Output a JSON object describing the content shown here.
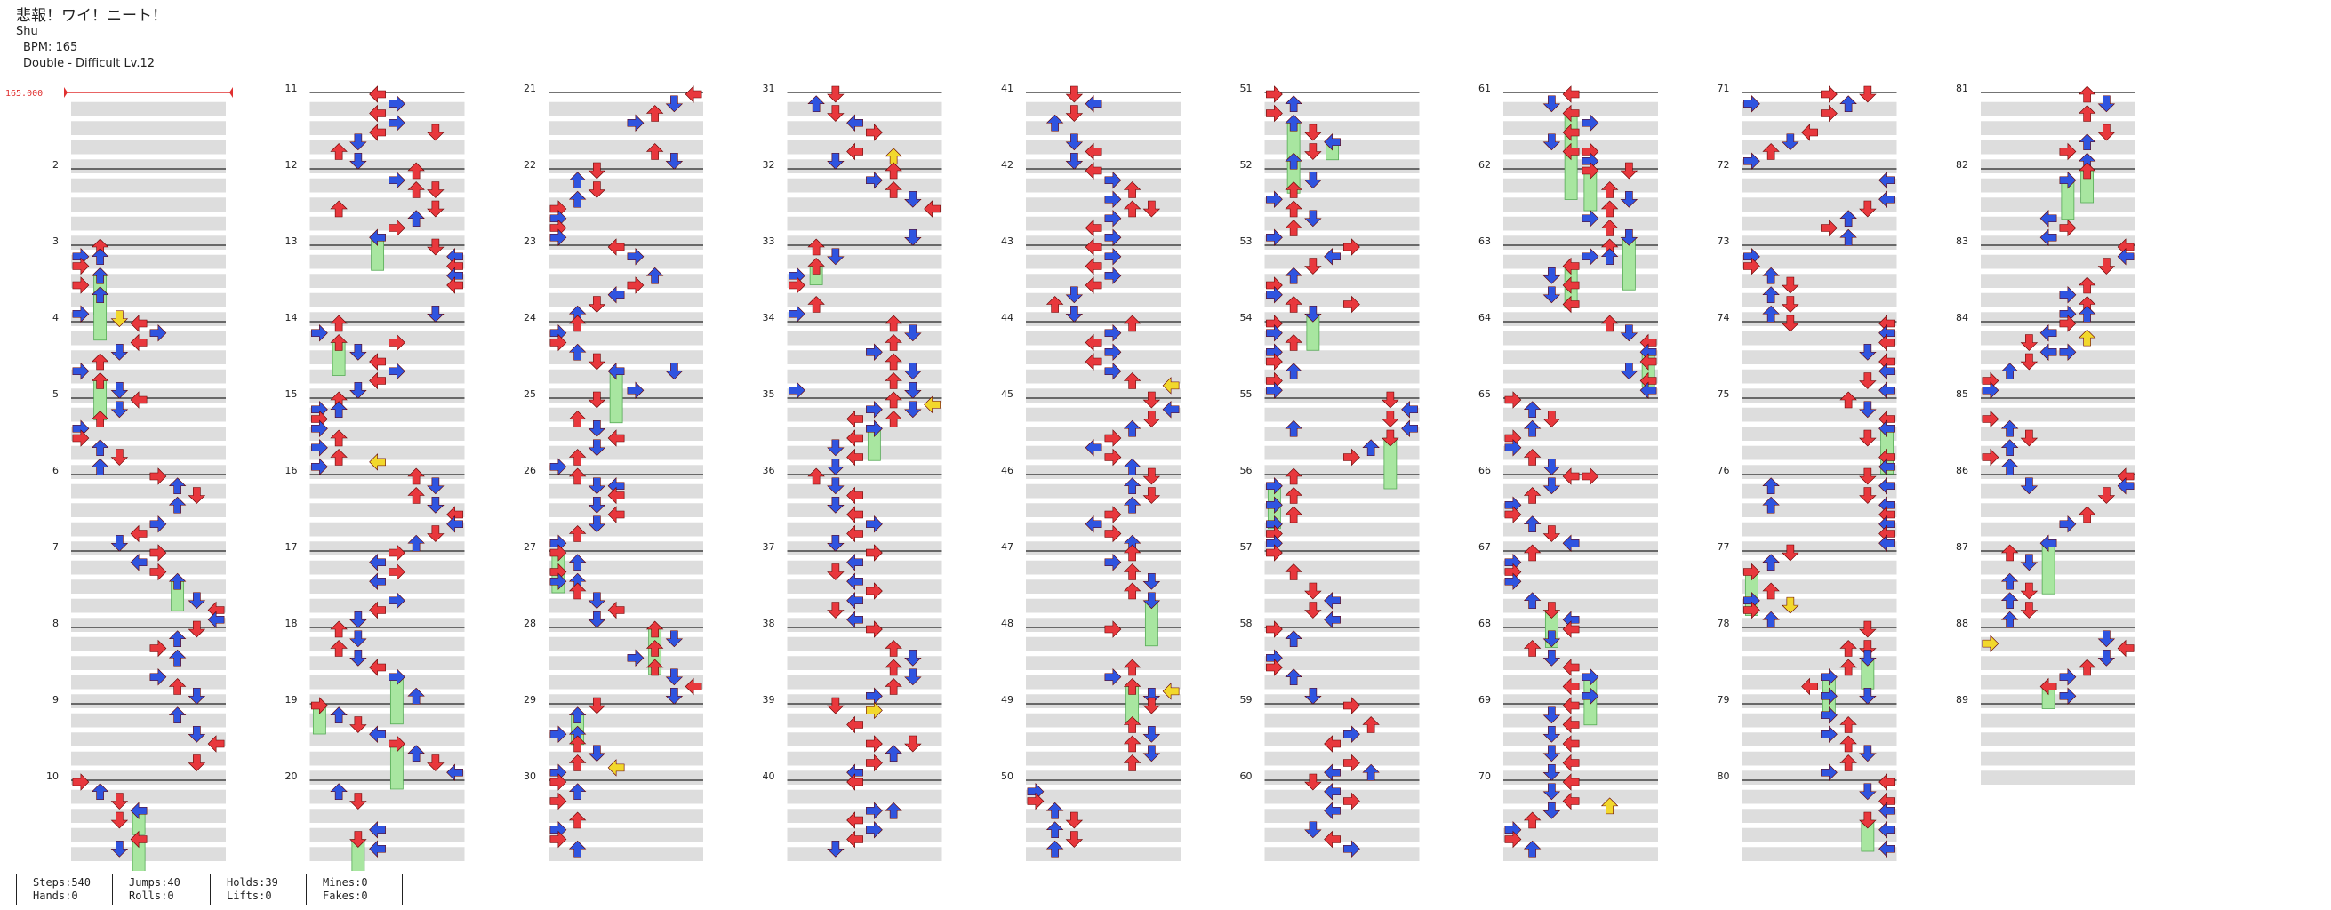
{
  "song": {
    "title": "悲報！ワイ！ニート！",
    "artist": "Shu",
    "bpm": "BPM: 165",
    "chart": "Double - Difficult  Lv.12"
  },
  "bpm_marker": "165.000",
  "measures": [
    "2",
    "3",
    "4",
    "5",
    "6",
    "7",
    "8",
    "9",
    "10",
    "11",
    "12",
    "13",
    "14",
    "15",
    "16",
    "17",
    "18",
    "19",
    "20",
    "21",
    "22",
    "23",
    "24",
    "25",
    "26",
    "27",
    "28",
    "29",
    "30",
    "31",
    "32",
    "33",
    "34",
    "35",
    "36",
    "37",
    "38",
    "39",
    "40",
    "41",
    "42",
    "43",
    "44",
    "45",
    "46",
    "47",
    "48",
    "49",
    "50",
    "51",
    "52",
    "53",
    "54",
    "55",
    "56",
    "57",
    "58",
    "59",
    "60",
    "61",
    "62",
    "63",
    "64",
    "65",
    "66",
    "67",
    "68",
    "69",
    "70",
    "71",
    "72",
    "73",
    "74",
    "75",
    "76",
    "77",
    "78",
    "79",
    "80",
    "81",
    "82",
    "83",
    "84",
    "85",
    "86",
    "87",
    "88",
    "89"
  ],
  "stats": {
    "steps": "Steps:540",
    "hands": "Hands:0",
    "jumps": "Jumps:40",
    "rolls": "Rolls:0",
    "holds": "Holds:39",
    "lifts": "Lifts:0",
    "mines": "Mines:0",
    "fakes": "Fakes:0"
  },
  "colors": {
    "quarter_note": "#e8383d",
    "eighth_note": "#2f54e0",
    "sixteenth_note": "#f2d82c",
    "hold_body": "#a8e6a0",
    "band": "#dddddd",
    "bpm_line": "#e03030"
  },
  "note_counts": {
    "measures_rendered": 89,
    "bpm_value": 165
  }
}
